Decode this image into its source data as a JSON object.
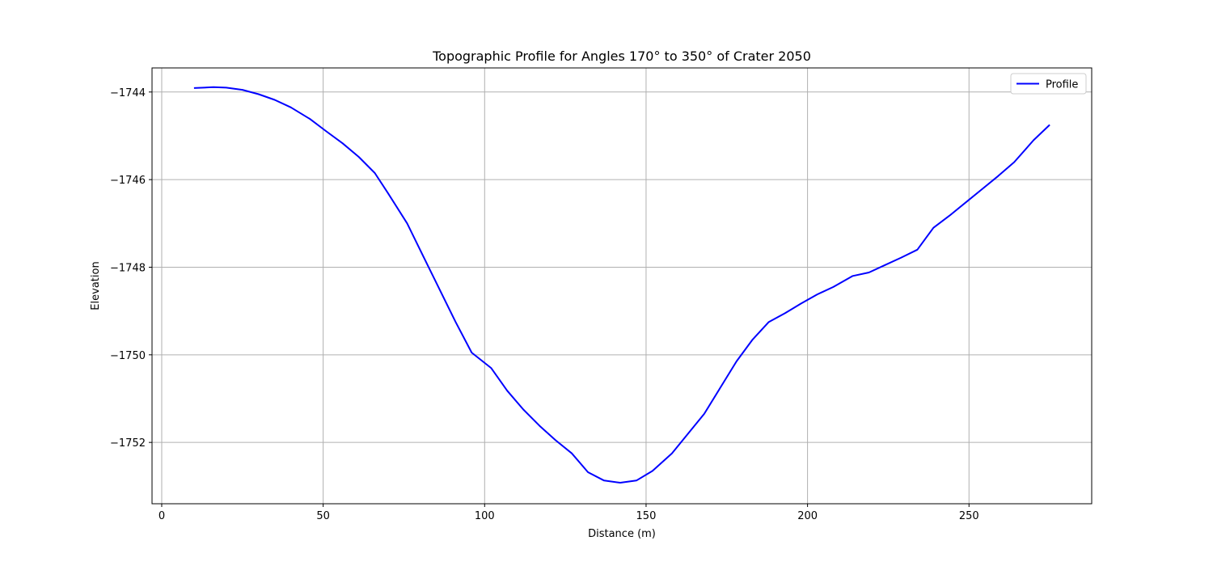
{
  "chart_data": {
    "type": "line",
    "title": "Topographic Profile for Angles 170° to 350° of Crater 2050",
    "xlabel": "Distance (m)",
    "ylabel": "Elevation",
    "xlim": [
      -3,
      288
    ],
    "ylim": [
      -1753.4,
      -1743.45
    ],
    "xticks": [
      0,
      50,
      100,
      150,
      200,
      250
    ],
    "yticks": [
      -1744,
      -1746,
      -1748,
      -1750,
      -1752
    ],
    "xtick_labels": [
      "0",
      "50",
      "100",
      "150",
      "200",
      "250"
    ],
    "ytick_labels": [
      "−1744",
      "−1746",
      "−1748",
      "−1750",
      "−1752"
    ],
    "grid": true,
    "legend_position": "top-right",
    "series": [
      {
        "name": "Profile",
        "color": "#0000ff",
        "x": [
          10,
          16,
          20,
          25,
          30,
          35,
          40,
          46,
          51,
          56,
          61,
          66,
          70,
          76,
          81,
          86,
          91,
          96,
          102,
          107,
          112,
          117,
          122,
          127,
          132,
          137,
          142,
          147,
          152,
          158,
          163,
          168,
          173,
          178,
          183,
          188,
          193,
          198,
          203,
          208,
          214,
          219,
          224,
          229,
          234,
          239,
          244,
          249,
          254,
          259,
          264,
          270,
          275
        ],
        "y": [
          -1743.91,
          -1743.89,
          -1743.9,
          -1743.95,
          -1744.05,
          -1744.18,
          -1744.35,
          -1744.62,
          -1744.9,
          -1745.17,
          -1745.48,
          -1745.85,
          -1746.3,
          -1747.0,
          -1747.75,
          -1748.5,
          -1749.25,
          -1749.95,
          -1750.3,
          -1750.82,
          -1751.25,
          -1751.62,
          -1751.95,
          -1752.25,
          -1752.68,
          -1752.87,
          -1752.92,
          -1752.87,
          -1752.65,
          -1752.25,
          -1751.8,
          -1751.35,
          -1750.75,
          -1750.15,
          -1749.65,
          -1749.25,
          -1749.05,
          -1748.83,
          -1748.62,
          -1748.45,
          -1748.2,
          -1748.12,
          -1747.95,
          -1747.78,
          -1747.6,
          -1747.1,
          -1746.82,
          -1746.52,
          -1746.22,
          -1745.92,
          -1745.6,
          -1745.1,
          -1744.75
        ]
      }
    ]
  }
}
